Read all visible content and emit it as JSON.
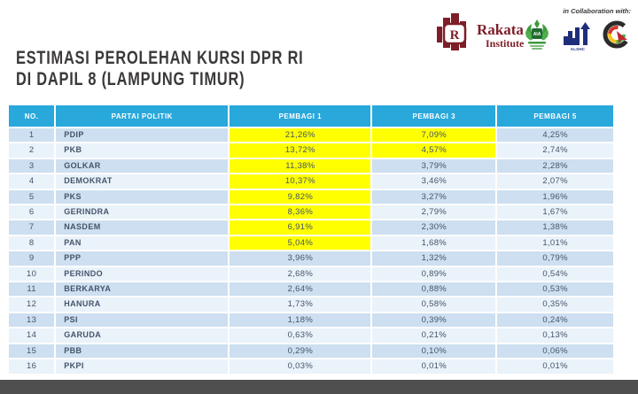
{
  "header": {
    "title_line1": "ESTIMASI PEROLEHAN KURSI DPR RI",
    "title_line2": "DI DAPIL 8 (LAMPUNG TIMUR)",
    "collaboration_label": "in Collaboration with:",
    "rakata_name": "Rakata",
    "rakata_sub": "Institute",
    "alshc_label": "ALSHC"
  },
  "table": {
    "columns": [
      "No.",
      "PARTAI POLITIK",
      "PEMBAGI 1",
      "PEMBAGI 3",
      "PEMBAGI 5"
    ],
    "rows": [
      {
        "no": "1",
        "party": "PDIP",
        "p1": "21,26%",
        "p3": "7,09%",
        "p5": "4,25%",
        "hl_p1": true,
        "hl_p3": true
      },
      {
        "no": "2",
        "party": "PKB",
        "p1": "13,72%",
        "p3": "4,57%",
        "p5": "2,74%",
        "hl_p1": true,
        "hl_p3": true
      },
      {
        "no": "3",
        "party": "GOLKAR",
        "p1": "11,38%",
        "p3": "3,79%",
        "p5": "2,28%",
        "hl_p1": true
      },
      {
        "no": "4",
        "party": "DEMOKRAT",
        "p1": "10,37%",
        "p3": "3,46%",
        "p5": "2,07%",
        "hl_p1": true
      },
      {
        "no": "5",
        "party": "PKS",
        "p1": "9,82%",
        "p3": "3,27%",
        "p5": "1,96%",
        "hl_p1": true
      },
      {
        "no": "6",
        "party": "GERINDRA",
        "p1": "8,36%",
        "p3": "2,79%",
        "p5": "1,67%",
        "hl_p1": true
      },
      {
        "no": "7",
        "party": "NASDEM",
        "p1": "6,91%",
        "p3": "2,30%",
        "p5": "1,38%",
        "hl_p1": true
      },
      {
        "no": "8",
        "party": "PAN",
        "p1": "5,04%",
        "p3": "1,68%",
        "p5": "1,01%",
        "hl_p1": true
      },
      {
        "no": "9",
        "party": "PPP",
        "p1": "3,96%",
        "p3": "1,32%",
        "p5": "0,79%"
      },
      {
        "no": "10",
        "party": "PERINDO",
        "p1": "2,68%",
        "p3": "0,89%",
        "p5": "0,54%"
      },
      {
        "no": "11",
        "party": "BERKARYA",
        "p1": "2,64%",
        "p3": "0,88%",
        "p5": "0,53%"
      },
      {
        "no": "12",
        "party": "HANURA",
        "p1": "1,73%",
        "p3": "0,58%",
        "p5": "0,35%"
      },
      {
        "no": "13",
        "party": "PSI",
        "p1": "1,18%",
        "p3": "0,39%",
        "p5": "0,24%"
      },
      {
        "no": "14",
        "party": "GARUDA",
        "p1": "0,63%",
        "p3": "0,21%",
        "p5": "0,13%"
      },
      {
        "no": "15",
        "party": "PBB",
        "p1": "0,29%",
        "p3": "0,10%",
        "p5": "0,06%"
      },
      {
        "no": "16",
        "party": "PKPI",
        "p1": "0,03%",
        "p3": "0,01%",
        "p5": "0,01%"
      }
    ]
  },
  "colors": {
    "header_blue": "#29A8DC",
    "row_odd": "#CDDFF0",
    "row_even": "#EAF2FA",
    "highlight": "#FFFF00",
    "text_dark": "#44546A",
    "title_color": "#3B3838",
    "footer_bar": "#4F4F4F",
    "rakata_maroon": "#7E1E28",
    "alshc_navy": "#1F2E7A",
    "wreath_green": "#3E9B3E"
  }
}
